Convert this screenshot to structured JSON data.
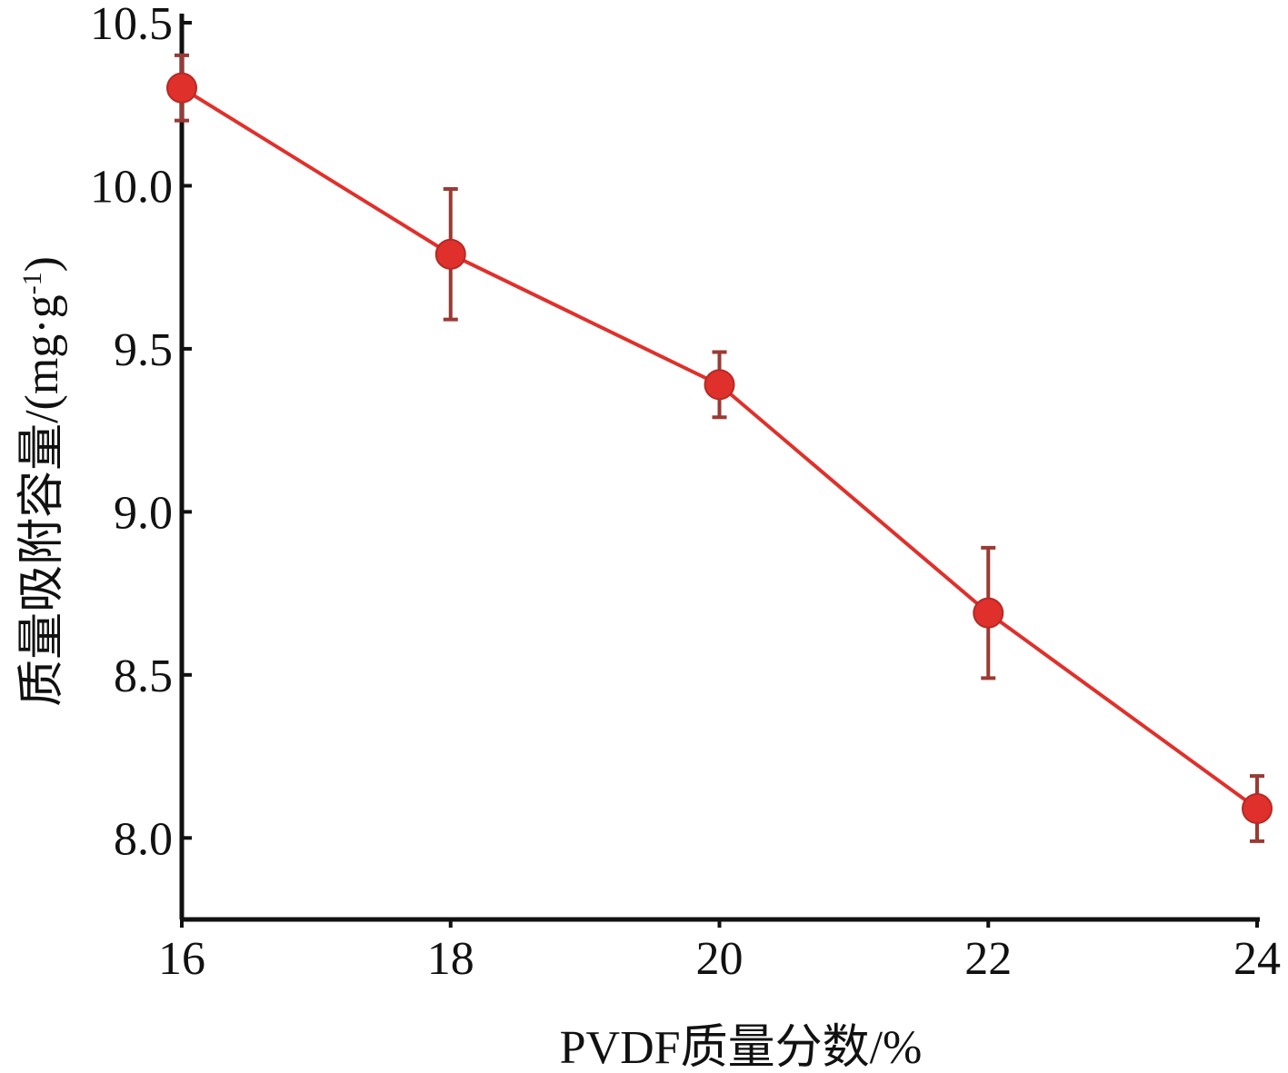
{
  "chart_data": {
    "type": "line",
    "title": "",
    "xlabel": "PVDF质量分数/%",
    "ylabel": "质量吸附容量/(mg·g",
    "ylabel_sup": "-1",
    "ylabel_close": ")",
    "xlim": [
      16,
      24
    ],
    "ylim": [
      7.75,
      10.5
    ],
    "x_ticks": [
      16,
      18,
      20,
      22,
      24
    ],
    "x_tick_labels": [
      "16",
      "18",
      "20",
      "22",
      "24"
    ],
    "y_ticks": [
      8.0,
      8.5,
      9.0,
      9.5,
      10.0,
      10.5
    ],
    "y_tick_labels": [
      "8.0",
      "8.5",
      "9.0",
      "9.5",
      "10.0",
      "10.5"
    ],
    "grid": false,
    "series": [
      {
        "x": [
          16,
          18,
          20,
          22,
          24
        ],
        "y": [
          10.3,
          9.79,
          9.39,
          8.69,
          8.09
        ],
        "error": [
          0.1,
          0.2,
          0.1,
          0.2,
          0.1
        ]
      }
    ],
    "colors": {
      "line": "#e0302b",
      "marker": "#e0302b",
      "errorbar": "#9a3a34",
      "axis": "#111111"
    }
  }
}
